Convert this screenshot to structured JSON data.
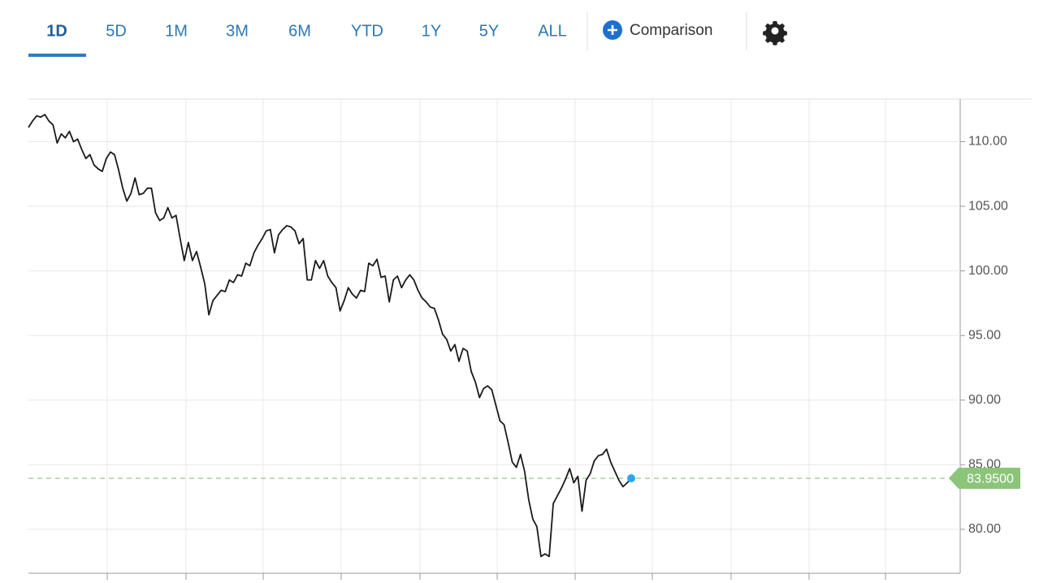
{
  "tabs": [
    "1D",
    "5D",
    "1M",
    "3M",
    "6M",
    "YTD",
    "1Y",
    "5Y",
    "ALL"
  ],
  "active_tab": "1D",
  "comparison": "Comparison",
  "chart_data": {
    "type": "line",
    "color": "#1a1a1a",
    "values": [
      111.1,
      111.6,
      112.0,
      111.9,
      112.1,
      111.6,
      111.3,
      109.9,
      110.6,
      110.3,
      110.8,
      110.0,
      110.2,
      109.4,
      108.7,
      109.0,
      108.2,
      107.9,
      107.7,
      108.7,
      109.2,
      109.0,
      107.8,
      106.4,
      105.4,
      106.0,
      107.2,
      105.9,
      106.0,
      106.4,
      106.4,
      104.5,
      103.9,
      104.1,
      104.9,
      104.1,
      104.3,
      102.5,
      100.8,
      102.2,
      100.8,
      101.5,
      100.3,
      99.0,
      96.6,
      97.7,
      98.1,
      98.5,
      98.4,
      99.3,
      99.1,
      99.7,
      99.6,
      100.6,
      100.4,
      101.4,
      102.0,
      102.5,
      103.1,
      103.2,
      101.4,
      102.8,
      103.2,
      103.5,
      103.4,
      103.1,
      102.1,
      102.5,
      99.3,
      99.3,
      100.8,
      100.2,
      100.8,
      99.6,
      99.1,
      98.7,
      96.9,
      97.7,
      98.7,
      98.2,
      97.9,
      98.5,
      98.4,
      100.6,
      100.4,
      100.9,
      99.5,
      99.6,
      97.6,
      99.3,
      99.6,
      98.7,
      99.3,
      99.7,
      99.3,
      98.5,
      97.9,
      97.6,
      97.2,
      97.1,
      96.2,
      95.1,
      94.7,
      93.8,
      94.3,
      93.0,
      94.0,
      93.8,
      92.2,
      91.4,
      90.2,
      90.9,
      91.1,
      90.8,
      89.6,
      88.4,
      88.1,
      86.7,
      85.2,
      84.8,
      85.8,
      84.5,
      82.3,
      80.8,
      80.2,
      77.9,
      78.1,
      77.9,
      82.0,
      82.6,
      83.2,
      83.9,
      84.7,
      83.6,
      84.1,
      81.4,
      83.8,
      84.3,
      85.3,
      85.7,
      85.8,
      86.2,
      85.2,
      84.5,
      83.8,
      83.3,
      83.6,
      83.95
    ],
    "ylim": [
      76.6,
      113.3
    ],
    "yticks": [
      {
        "value": 80,
        "label": "80.00"
      },
      {
        "value": 85,
        "label": "85.00"
      },
      {
        "value": 90,
        "label": "90.00"
      },
      {
        "value": 95,
        "label": "95.00"
      },
      {
        "value": 100,
        "label": "100.00"
      },
      {
        "value": 105,
        "label": "105.00"
      },
      {
        "value": 110,
        "label": "110.00"
      }
    ],
    "grid": true,
    "last_value": {
      "value": 83.95,
      "label": "83.9500"
    },
    "last_value_color": "#8cc47a",
    "marker_color": "#29a8f0"
  }
}
